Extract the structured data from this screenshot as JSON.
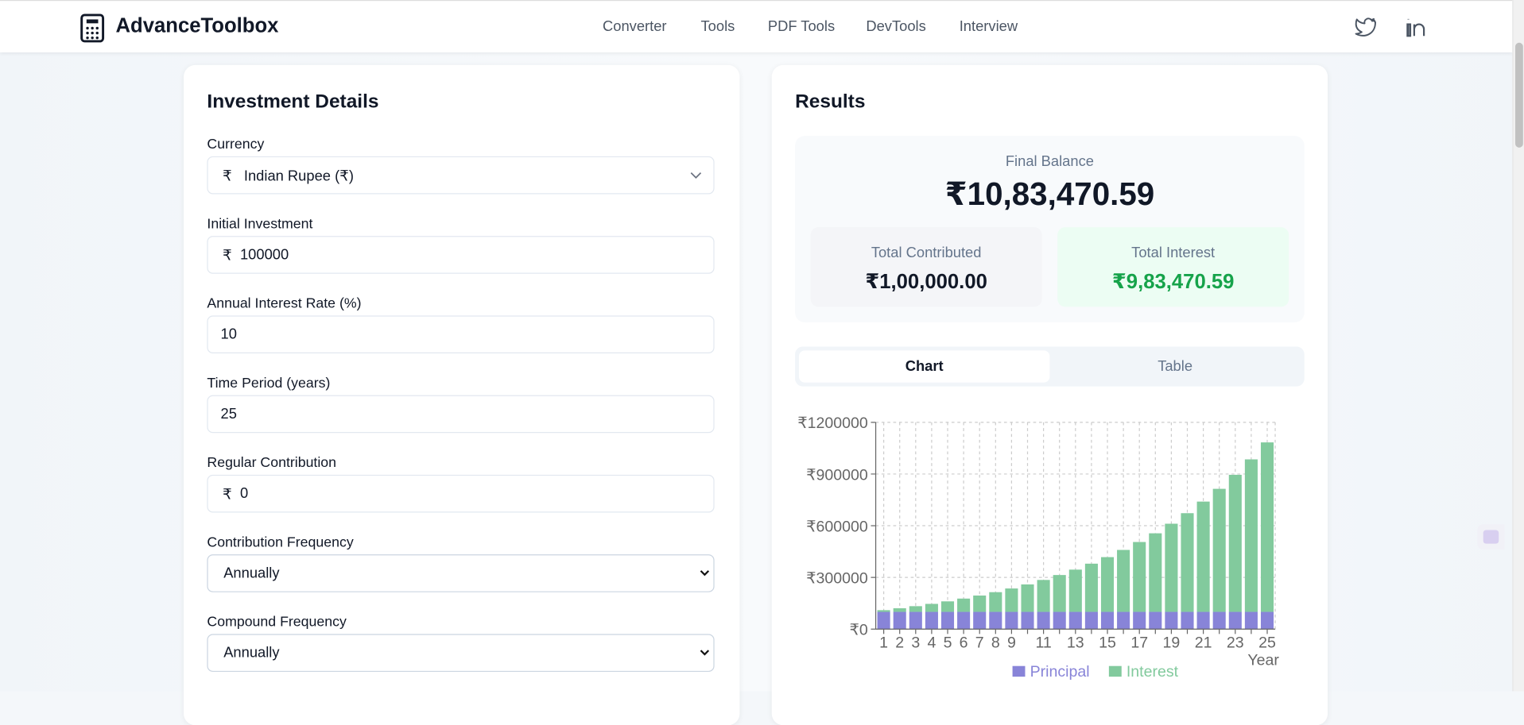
{
  "header": {
    "brand": "AdvanceToolbox",
    "nav": [
      "Converter",
      "Tools",
      "PDF Tools",
      "DevTools",
      "Interview"
    ]
  },
  "form": {
    "title": "Investment Details",
    "fields": [
      {
        "label": "Currency",
        "prefix": "₹",
        "value": "Indian Rupee (₹)"
      },
      {
        "label": "Initial Investment",
        "prefix": "₹",
        "value": "100000"
      },
      {
        "label": "Annual Interest Rate (%)",
        "value": "10"
      },
      {
        "label": "Time Period (years)",
        "value": "25"
      },
      {
        "label": "Regular Contribution",
        "prefix": "₹",
        "value": "0"
      },
      {
        "label": "Contribution Frequency",
        "value": "Annually"
      },
      {
        "label": "Compound Frequency",
        "value": "Annually"
      }
    ]
  },
  "results": {
    "title": "Results",
    "final_balance_label": "Final Balance",
    "final_balance": "₹10,83,470.59",
    "total_contributed_label": "Total Contributed",
    "total_contributed": "₹1,00,000.00",
    "total_interest_label": "Total Interest",
    "total_interest": "₹9,83,470.59",
    "tabs": [
      "Chart",
      "Table"
    ]
  },
  "chart_data": {
    "type": "stacked-bar",
    "x_label": "Year",
    "categories": [
      "1",
      "2",
      "3",
      "4",
      "5",
      "6",
      "7",
      "8",
      "9",
      null,
      "11",
      null,
      "13",
      null,
      "15",
      null,
      "17",
      null,
      "19",
      null,
      "21",
      null,
      "23",
      null,
      "25"
    ],
    "series": [
      {
        "name": "Principal",
        "color": "#8884d8",
        "values": [
          100000,
          100000,
          100000,
          100000,
          100000,
          100000,
          100000,
          100000,
          100000,
          100000,
          100000,
          100000,
          100000,
          100000,
          100000,
          100000,
          100000,
          100000,
          100000,
          100000,
          100000,
          100000,
          100000,
          100000,
          100000
        ]
      },
      {
        "name": "Interest",
        "color": "#82ca9d",
        "values": [
          10000,
          21000,
          33100,
          46410,
          61051,
          77156.1,
          94871.71,
          114358.88,
          135794.77,
          159374.25,
          185311.67,
          213842.84,
          245227.12,
          279749.83,
          317724.82,
          359497.3,
          405447.03,
          455991.73,
          511590.9,
          572749.99,
          640024.99,
          714027.49,
          795430.24,
          884973.27,
          983470.59
        ]
      }
    ],
    "ylim": [
      0,
      1200000
    ],
    "yticks": [
      {
        "value": 0,
        "label": "₹0"
      },
      {
        "value": 300000,
        "label": "₹300000"
      },
      {
        "value": 600000,
        "label": "₹600000"
      },
      {
        "value": 900000,
        "label": "₹900000"
      },
      {
        "value": 1200000,
        "label": "₹1200000"
      }
    ],
    "grid": true,
    "legend": "bottom"
  }
}
